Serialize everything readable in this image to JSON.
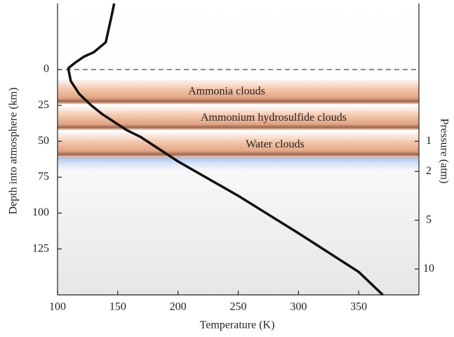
{
  "chart_data": {
    "type": "line",
    "xlabel": "Temperature (K)",
    "ylabel": "Depth into atmosphere (km)",
    "x": [
      147,
      145,
      140,
      130,
      122,
      115,
      109,
      109,
      111,
      118,
      128,
      137,
      146,
      157,
      169,
      200,
      250,
      300,
      350,
      370
    ],
    "series": [
      {
        "color": "#111111",
        "values": [
          -46,
          -38,
          -19,
          -12,
          -9,
          -5,
          -1,
          0,
          8,
          17,
          25,
          31,
          36,
          42,
          47,
          64,
          88,
          114,
          141,
          157
        ]
      }
    ],
    "xlim": [
      100,
      400
    ],
    "xticks": [
      100,
      150,
      200,
      250,
      300,
      350
    ],
    "ylim": [
      157,
      -46
    ],
    "yticks": [
      0,
      25,
      50,
      75,
      100,
      125
    ],
    "hlines": [
      0
    ],
    "clouds": [
      {
        "name": "Ammonia clouds",
        "top": 7,
        "bottom": 24
      },
      {
        "name": "Ammonium hydrosulfide clouds",
        "top": 26,
        "bottom": 42
      },
      {
        "name": "Water clouds",
        "top": 44,
        "bottom": 61
      }
    ],
    "pressure_axis": {
      "label": "Pressure (atm)",
      "ticks": [
        1,
        2,
        5,
        10
      ],
      "tick_depths": [
        50,
        71,
        105,
        139
      ]
    }
  }
}
